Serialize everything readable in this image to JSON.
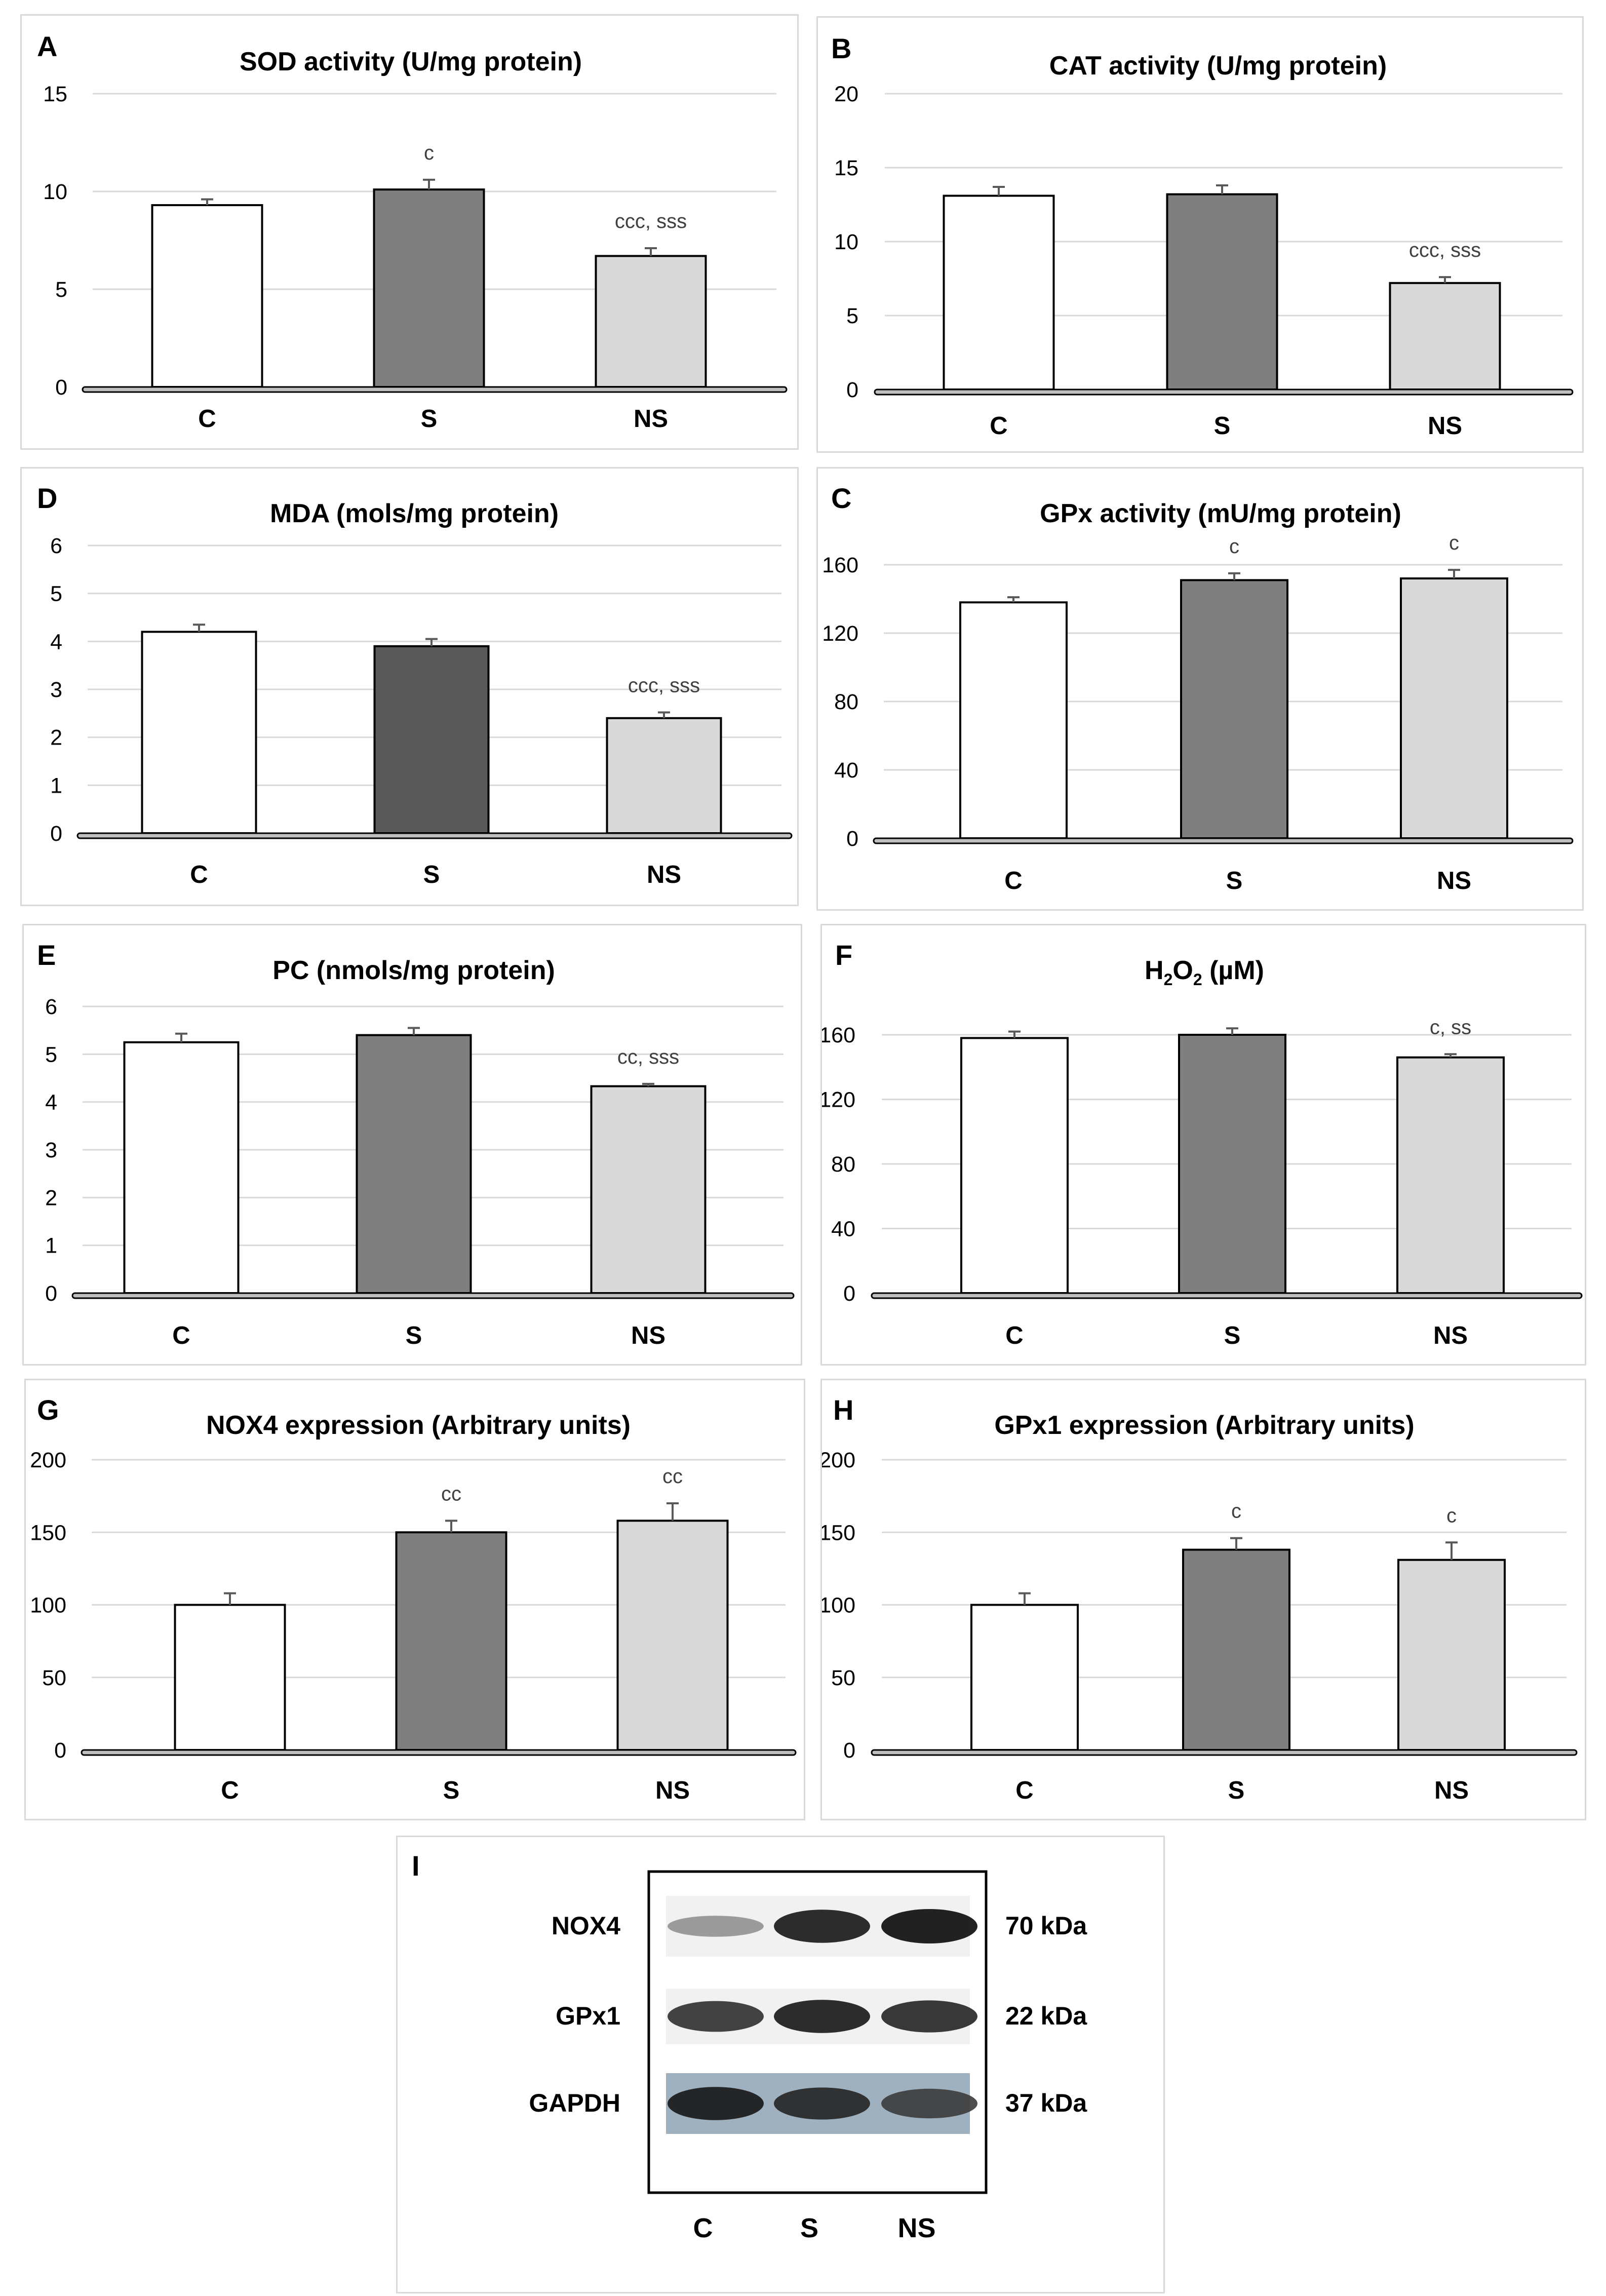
{
  "colors": {
    "C": "#ffffff",
    "S": "#7f7f7f",
    "S_dark": "#595959",
    "NS": "#d9d9d9"
  },
  "chart_data": [
    {
      "panel": "A",
      "type": "bar",
      "title": "SOD activity (U/mg protein)",
      "categories": [
        "C",
        "S",
        "NS"
      ],
      "values": [
        9.3,
        10.1,
        6.7
      ],
      "errors": [
        0.3,
        0.5,
        0.4
      ],
      "annotations": [
        "",
        "c",
        "ccc, sss"
      ],
      "ylim": [
        0,
        15
      ],
      "yticks": [
        0,
        5,
        10,
        15
      ],
      "xlabel": "",
      "ylabel": ""
    },
    {
      "panel": "B",
      "type": "bar",
      "title": "CAT activity (U/mg protein)",
      "categories": [
        "C",
        "S",
        "NS"
      ],
      "values": [
        13.1,
        13.2,
        7.2
      ],
      "errors": [
        0.6,
        0.6,
        0.4
      ],
      "annotations": [
        "",
        "",
        "ccc, sss"
      ],
      "ylim": [
        0,
        20
      ],
      "yticks": [
        0,
        5,
        10,
        15,
        20
      ],
      "xlabel": "",
      "ylabel": ""
    },
    {
      "panel": "D",
      "type": "bar",
      "title": "MDA (mols/mg protein)",
      "categories": [
        "C",
        "S",
        "NS"
      ],
      "values": [
        4.2,
        3.9,
        2.4
      ],
      "errors": [
        0.15,
        0.15,
        0.12
      ],
      "annotations": [
        "",
        "",
        "ccc, sss"
      ],
      "ylim": [
        0,
        6
      ],
      "yticks": [
        0,
        1,
        2,
        3,
        4,
        5,
        6
      ],
      "xlabel": "",
      "ylabel": ""
    },
    {
      "panel": "C",
      "type": "bar",
      "title": "GPx activity (mU/mg protein)",
      "categories": [
        "C",
        "S",
        "NS"
      ],
      "values": [
        138,
        151,
        152
      ],
      "errors": [
        3,
        4,
        5
      ],
      "annotations": [
        "",
        "c",
        "c"
      ],
      "ylim": [
        0,
        160
      ],
      "yticks": [
        0,
        40,
        80,
        120,
        160
      ],
      "xlabel": "",
      "ylabel": ""
    },
    {
      "panel": "E",
      "type": "bar",
      "title": "PC (nmols/mg protein)",
      "categories": [
        "C",
        "S",
        "NS"
      ],
      "values": [
        5.25,
        5.4,
        4.33
      ],
      "errors": [
        0.18,
        0.15,
        0.05
      ],
      "annotations": [
        "",
        "",
        "cc, sss"
      ],
      "ylim": [
        0,
        6
      ],
      "yticks": [
        0,
        1,
        2,
        3,
        4,
        5,
        6
      ],
      "xlabel": "",
      "ylabel": ""
    },
    {
      "panel": "F",
      "type": "bar",
      "title": "H2O2 (µM)",
      "categories": [
        "C",
        "S",
        "NS"
      ],
      "values": [
        158,
        160,
        146
      ],
      "errors": [
        4,
        4,
        2
      ],
      "annotations": [
        "",
        "",
        "c, ss"
      ],
      "ylim": [
        0,
        160
      ],
      "yticks": [
        0,
        40,
        80,
        120,
        160
      ],
      "xlabel": "",
      "ylabel": ""
    },
    {
      "panel": "G",
      "type": "bar",
      "title": "NOX4 expression (Arbitrary units)",
      "categories": [
        "C",
        "S",
        "NS"
      ],
      "values": [
        100,
        150,
        158
      ],
      "errors": [
        8,
        8,
        12
      ],
      "annotations": [
        "",
        "cc",
        "cc"
      ],
      "ylim": [
        0,
        200
      ],
      "yticks": [
        0,
        50,
        100,
        150,
        200
      ],
      "xlabel": "",
      "ylabel": ""
    },
    {
      "panel": "H",
      "type": "bar",
      "title": "GPx1 expression (Arbitrary units)",
      "categories": [
        "C",
        "S",
        "NS"
      ],
      "values": [
        100,
        138,
        131
      ],
      "errors": [
        8,
        8,
        12
      ],
      "annotations": [
        "",
        "c",
        "c"
      ],
      "ylim": [
        0,
        200
      ],
      "yticks": [
        0,
        50,
        100,
        150,
        200
      ],
      "xlabel": "",
      "ylabel": ""
    }
  ],
  "f_title": {
    "main": "H",
    "sub1": "2",
    "mid": "O",
    "sub2": "2",
    "rest": " (µM)"
  },
  "western_blot": {
    "panel": "I",
    "lanes": [
      "C",
      "S",
      "NS"
    ],
    "rows": [
      {
        "protein": "NOX4",
        "size": "70 kDa",
        "band_intensity": [
          0.45,
          0.95,
          1.0
        ]
      },
      {
        "protein": "GPx1",
        "size": "22 kDa",
        "band_intensity": [
          0.85,
          0.95,
          0.9
        ]
      },
      {
        "protein": "GAPDH",
        "size": "37 kDa",
        "band_intensity": [
          0.95,
          0.9,
          0.8
        ]
      }
    ]
  }
}
